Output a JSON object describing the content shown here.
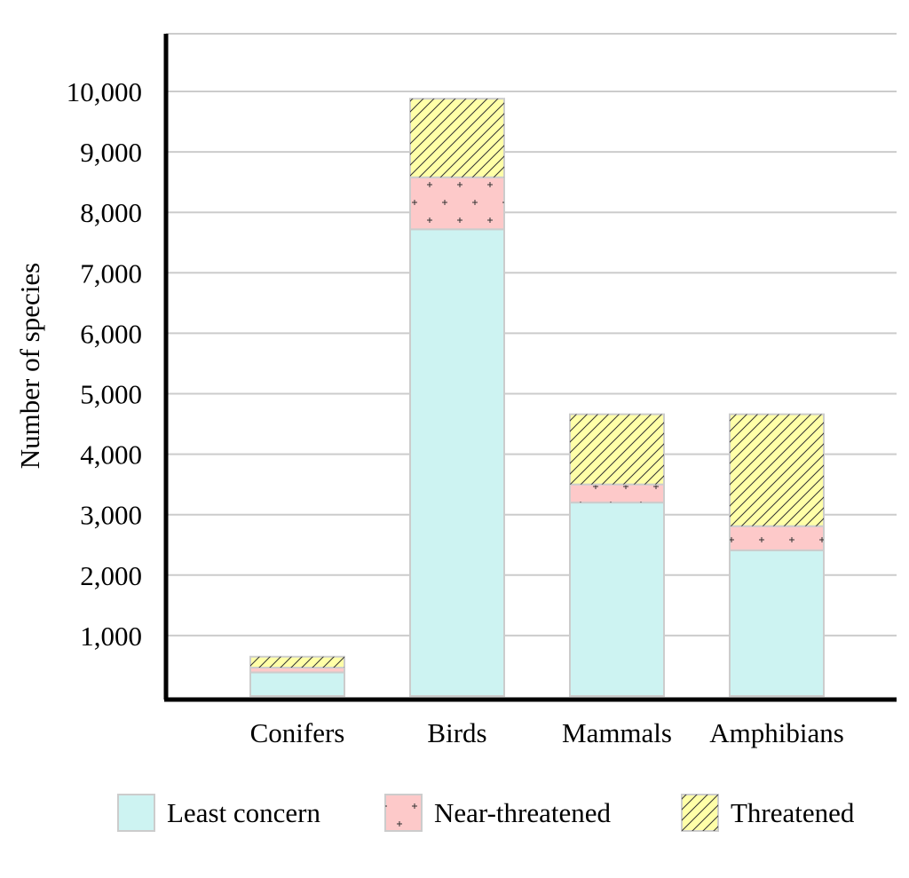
{
  "chart_data": {
    "type": "bar",
    "stacked": true,
    "title": "",
    "xlabel": "",
    "ylabel": "Number of species",
    "ylim": [
      0,
      11000
    ],
    "yticks": [
      1000,
      2000,
      3000,
      4000,
      5000,
      6000,
      7000,
      8000,
      9000,
      10000
    ],
    "ytick_labels": [
      "1,000",
      "2,000",
      "3,000",
      "4,000",
      "5,000",
      "6,000",
      "7,000",
      "8,000",
      "9,000",
      "10,000"
    ],
    "grid": true,
    "legend_position": "bottom",
    "categories": [
      "Conifers",
      "Birds",
      "Mammals",
      "Amphibians"
    ],
    "series": [
      {
        "name": "Least concern",
        "values": [
          390,
          7720,
          3200,
          2410
        ],
        "color": "#cdf3f2",
        "pattern": "none"
      },
      {
        "name": "Near-threatened",
        "values": [
          80,
          860,
          300,
          400
        ],
        "color": "#fdc9c9",
        "pattern": "plus"
      },
      {
        "name": "Threatened",
        "values": [
          180,
          1300,
          1160,
          1850
        ],
        "color": "#ffffa8",
        "pattern": "diagonal-hatch"
      }
    ]
  }
}
